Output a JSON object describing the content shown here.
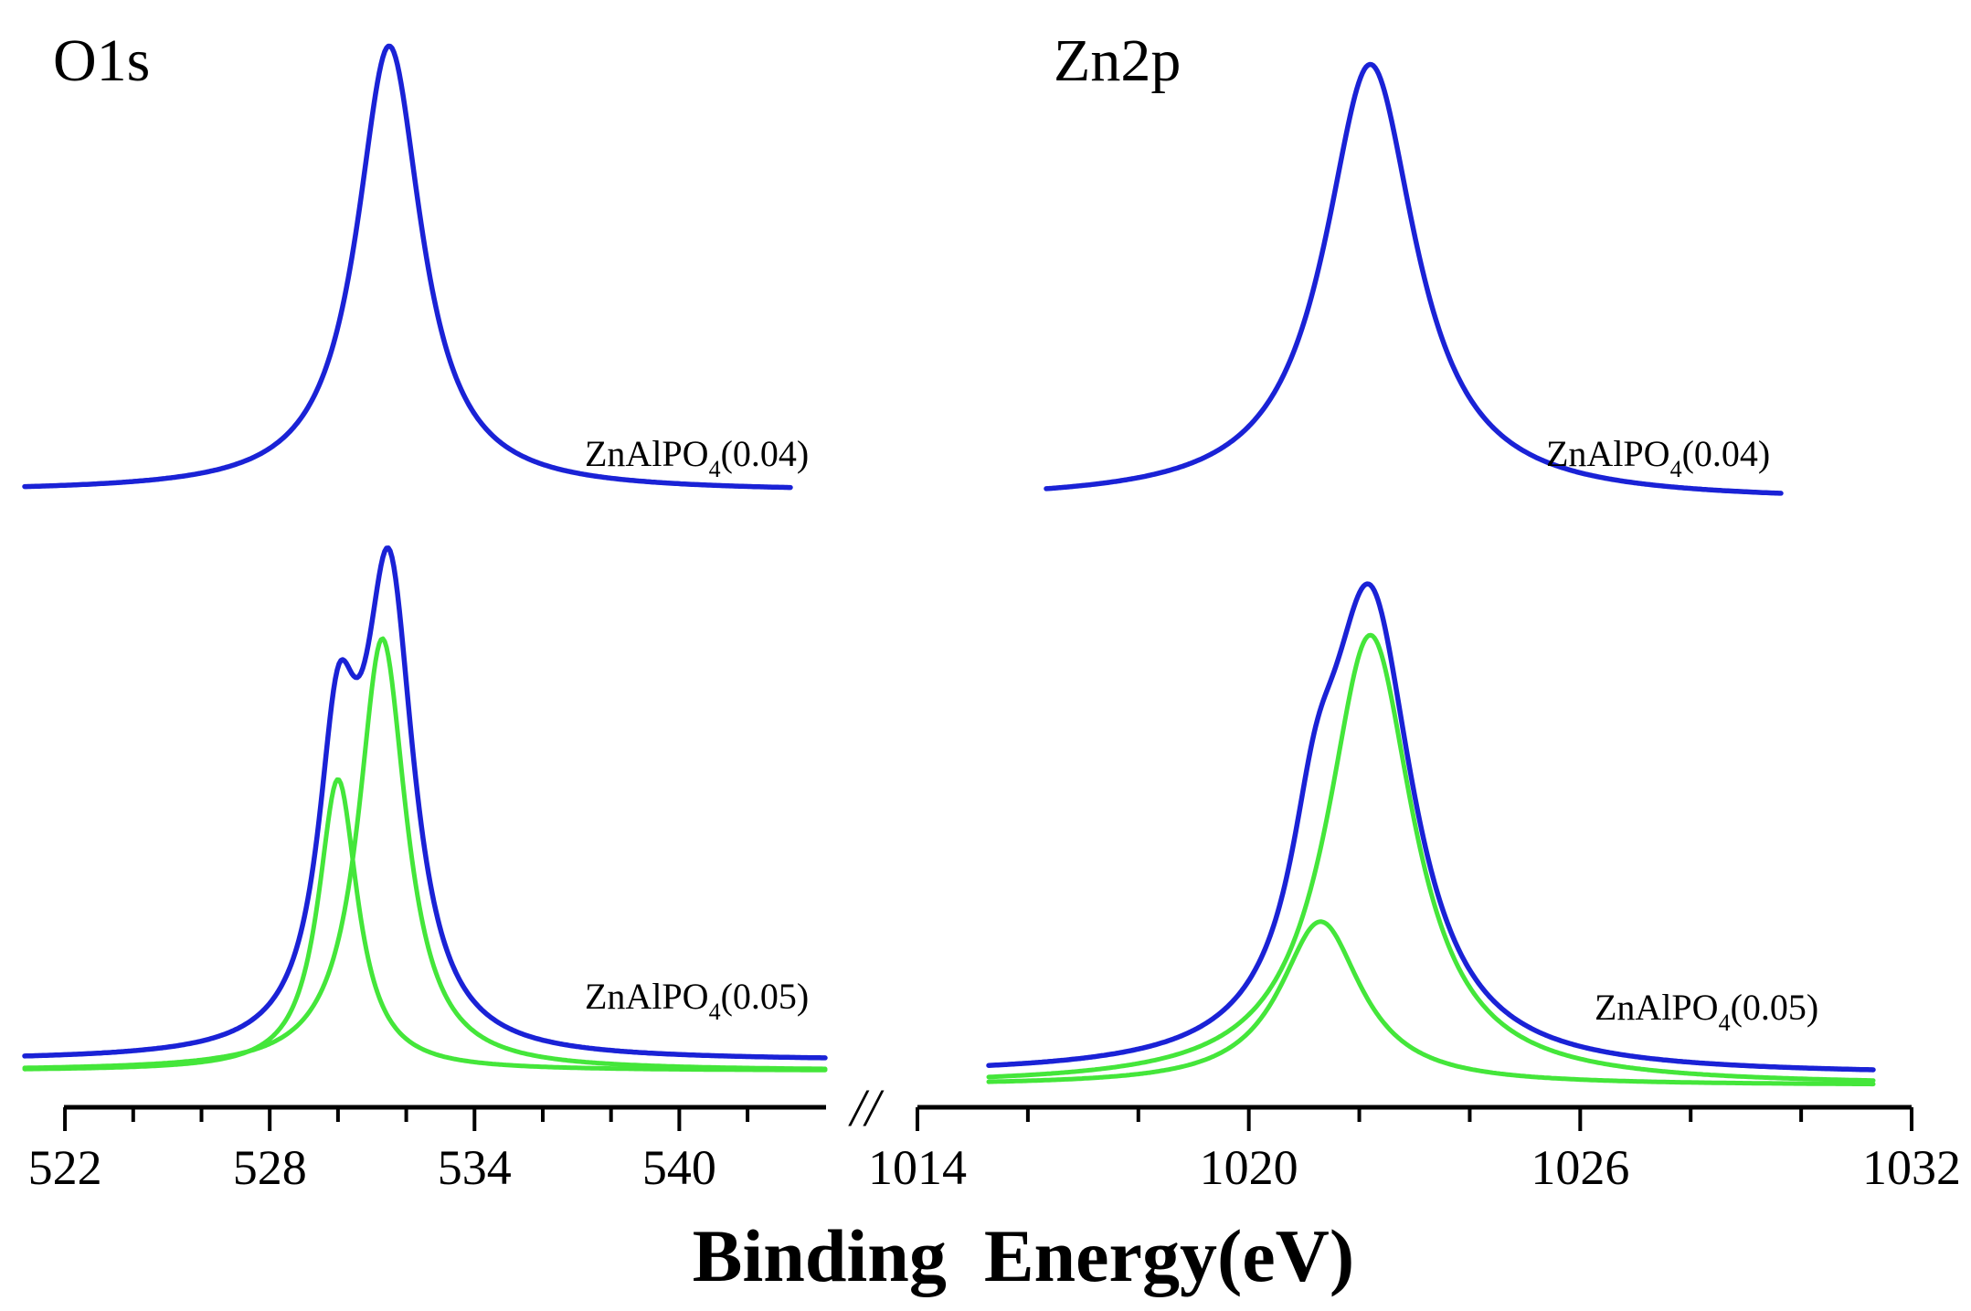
{
  "colors": {
    "envelope": "#1a22d6",
    "component": "#44e63a",
    "axis": "#000000"
  },
  "x_axis": {
    "label": "Binding  Energy(eV)",
    "break_mark": "//",
    "segments": [
      {
        "range": [
          520.9,
          544.3
        ],
        "major_ticks": [
          522,
          528,
          534,
          540
        ],
        "minor_ticks": [
          524,
          526,
          530,
          532,
          536,
          538,
          542
        ]
      },
      {
        "range": [
          1014,
          1032
        ],
        "major_ticks": [
          1014,
          1020,
          1026,
          1032
        ],
        "minor_ticks": [
          1016,
          1018,
          1022,
          1024,
          1028,
          1030
        ]
      }
    ]
  },
  "panels": [
    {
      "title": "O1s"
    },
    {
      "title": "Zn2p"
    }
  ],
  "samples": {
    "top": {
      "label_main": "ZnAlPO",
      "label_sub": "4",
      "label_suffix": "(0.04)"
    },
    "bottom": {
      "label_main": "ZnAlPO",
      "label_sub": "4",
      "label_suffix": "(0.05)"
    }
  },
  "chart_data": [
    {
      "type": "line",
      "title": "O1s",
      "xlabel": "Binding  Energy(eV)",
      "ylabel": "",
      "xlim": [
        520.9,
        544.3
      ],
      "sample": "ZnAlPO4(0.04)",
      "series": [
        {
          "role": "envelope",
          "color": "#1a22d6",
          "baseline": 0.02,
          "peaks": [
            {
              "center": 531.5,
              "height": 1.0,
              "fwhm": 2.3
            }
          ]
        }
      ]
    },
    {
      "type": "line",
      "title": "O1s",
      "xlabel": "Binding  Energy(eV)",
      "ylabel": "",
      "xlim": [
        520.9,
        544.3
      ],
      "sample": "ZnAlPO4(0.05)",
      "series": [
        {
          "role": "envelope",
          "color": "#1a22d6",
          "baseline": 0.02,
          "peaks": [
            {
              "center": 530.0,
              "height": 0.55,
              "fwhm": 1.4
            },
            {
              "center": 531.5,
              "height": 0.92,
              "fwhm": 1.75
            }
          ]
        },
        {
          "role": "component",
          "color": "#44e63a",
          "baseline": 0.0,
          "peaks": [
            {
              "center": 530.0,
              "height": 0.58,
              "fwhm": 1.4
            }
          ]
        },
        {
          "role": "component",
          "color": "#44e63a",
          "baseline": 0.0,
          "peaks": [
            {
              "center": 531.3,
              "height": 0.86,
              "fwhm": 1.7
            }
          ]
        }
      ]
    },
    {
      "type": "line",
      "title": "Zn2p",
      "xlabel": "Binding  Energy(eV)",
      "ylabel": "",
      "xlim": [
        1014,
        1032
      ],
      "sample": "ZnAlPO4(0.04)",
      "series": [
        {
          "role": "envelope",
          "color": "#1a22d6",
          "baseline": 0.02,
          "peaks": [
            {
              "center": 1022.2,
              "height": 1.0,
              "fwhm": 2.0
            }
          ]
        }
      ]
    },
    {
      "type": "line",
      "title": "Zn2p",
      "xlabel": "Binding  Energy(eV)",
      "ylabel": "",
      "xlim": [
        1014,
        1032
      ],
      "sample": "ZnAlPO4(0.05)",
      "series": [
        {
          "role": "envelope",
          "color": "#1a22d6",
          "baseline": 0.02,
          "peaks": [
            {
              "center": 1021.2,
              "height": 0.25,
              "fwhm": 1.1
            },
            {
              "center": 1022.2,
              "height": 0.9,
              "fwhm": 1.9
            }
          ]
        },
        {
          "role": "component",
          "color": "#44e63a",
          "baseline": 0.0,
          "peaks": [
            {
              "center": 1021.3,
              "height": 0.32,
              "fwhm": 1.8
            }
          ]
        },
        {
          "role": "component",
          "color": "#44e63a",
          "baseline": 0.0,
          "peaks": [
            {
              "center": 1022.2,
              "height": 0.88,
              "fwhm": 1.9
            }
          ]
        }
      ]
    }
  ]
}
